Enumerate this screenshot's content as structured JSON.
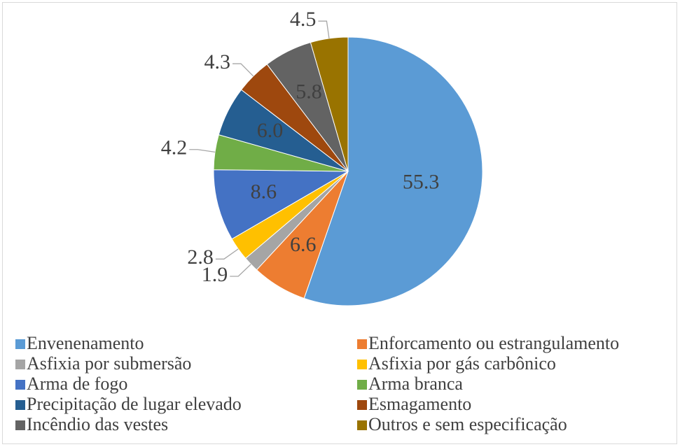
{
  "chart_data": {
    "type": "pie",
    "categories": [
      "Envenenamento",
      "Enforcamento ou estrangulamento",
      "Asfixia por submersão",
      "Asfixia por gás carbônico",
      "Arma de fogo",
      "Arma branca",
      "Precipitação de lugar elevado",
      "Esmagamento",
      "Incêndio das vestes",
      "Outros e sem especificação"
    ],
    "values": [
      55.3,
      6.6,
      1.9,
      2.8,
      8.6,
      4.2,
      6.0,
      4.3,
      5.8,
      4.5
    ],
    "value_labels": [
      "55.3",
      "6.6",
      "1.9",
      "2.8",
      "8.6",
      "4.2",
      "6.0",
      "4.3",
      "5.8",
      "4.5"
    ],
    "colors": [
      "#5b9bd5",
      "#ed7d31",
      "#a5a5a5",
      "#ffc000",
      "#4472c4",
      "#70ad47",
      "#255e91",
      "#9e480e",
      "#636363",
      "#997300"
    ],
    "legend": "bottom"
  }
}
